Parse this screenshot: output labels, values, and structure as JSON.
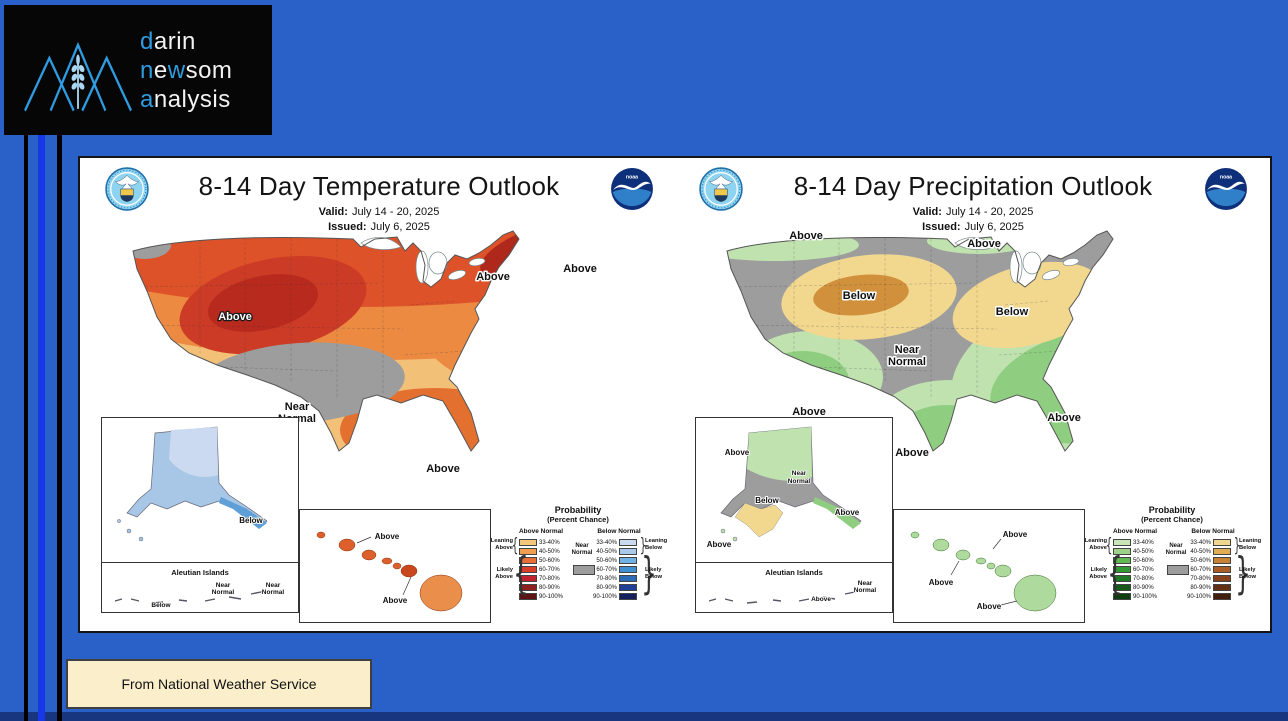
{
  "page": {
    "background": "#2A61C8",
    "bottom_bar_color": "#17367F",
    "stripe_blue": "#1638E8"
  },
  "logo": {
    "accent": "#2F9BE0",
    "lines": [
      {
        "segments": [
          {
            "text": "d",
            "hl": true
          },
          {
            "text": "arin",
            "hl": false
          }
        ]
      },
      {
        "segments": [
          {
            "text": "n",
            "hl": true
          },
          {
            "text": "e",
            "hl": false
          },
          {
            "text": "w",
            "hl": true
          },
          {
            "text": "som",
            "hl": false
          }
        ]
      },
      {
        "segments": [
          {
            "text": "a",
            "hl": true
          },
          {
            "text": "nalysis",
            "hl": false
          }
        ]
      }
    ]
  },
  "caption": {
    "text": "From National Weather Service"
  },
  "legend_shared": {
    "title": "Probability",
    "subtitle": "(Percent Chance)",
    "above_header": "Above Normal",
    "below_header": "Below Normal",
    "near_line1": "Near",
    "near_line2": "Normal",
    "near_color": "#9D9D9D",
    "ranges": [
      "33-40%",
      "40-50%",
      "50-60%",
      "60-70%",
      "70-80%",
      "80-90%",
      "90-100%"
    ],
    "leaning_above": "Leaning Above",
    "likely_above": "Likely Above",
    "leaning_below": "Leaning Below",
    "likely_below": "Likely Below"
  },
  "maps": [
    {
      "kind": "temperature",
      "title": "8-14 Day Temperature Outlook",
      "valid_label": "Valid:",
      "valid_value": "July 14 - 20, 2025",
      "issued_label": "Issued:",
      "issued_value": "July 6, 2025",
      "labels": {
        "west": "Above",
        "great_lakes": "Above",
        "northeast": "Above",
        "gulf": "Above",
        "near1": "Near",
        "near2": "Normal"
      },
      "alaska": {
        "below": "Below"
      },
      "aleutians": {
        "title": "Aleutian Islands",
        "near1a": "Near",
        "near2a": "Normal",
        "near1b": "Near",
        "near2b": "Normal",
        "below": "Below"
      },
      "hawaii": {
        "label1": "Above",
        "label2": "Above"
      },
      "legend_colors_above": [
        "#F5C77E",
        "#F09E4F",
        "#E76F35",
        "#DB3E28",
        "#C2232F",
        "#8F1F1F",
        "#5C1414"
      ],
      "legend_colors_below": [
        "#C9D9F0",
        "#A9C9EC",
        "#6FB3E6",
        "#3E90D2",
        "#2B6BB8",
        "#1F3E96",
        "#141F5E"
      ]
    },
    {
      "kind": "precipitation",
      "title": "8-14 Day Precipitation Outlook",
      "valid_label": "Valid:",
      "valid_value": "July 14 - 20, 2025",
      "issued_label": "Issued:",
      "issued_value": "July 6, 2025",
      "labels": {
        "nw": "Above",
        "north": "Above",
        "west_below": "Below",
        "midwest_below": "Below",
        "near1": "Near",
        "near2": "Normal",
        "southwest": "Above",
        "texas": "Above",
        "southeast": "Above"
      },
      "alaska": {
        "top": "Above",
        "near1": "Near",
        "near2": "Normal",
        "below": "Below",
        "panhandle": "Above",
        "corner": "Above"
      },
      "aleutians": {
        "title": "Aleutian Islands",
        "above": "Above",
        "near1": "Near",
        "near2": "Normal"
      },
      "hawaii": {
        "label1": "Above",
        "label2": "Above",
        "label3": "Above"
      },
      "legend_colors_above": [
        "#C8E6B8",
        "#9CD389",
        "#60BA50",
        "#319A33",
        "#1F7823",
        "#155A19",
        "#0D3D10"
      ],
      "legend_colors_below": [
        "#F0D78F",
        "#E0AD55",
        "#C98134",
        "#AC5C25",
        "#87421B",
        "#632E12",
        "#40200C"
      ]
    }
  ]
}
